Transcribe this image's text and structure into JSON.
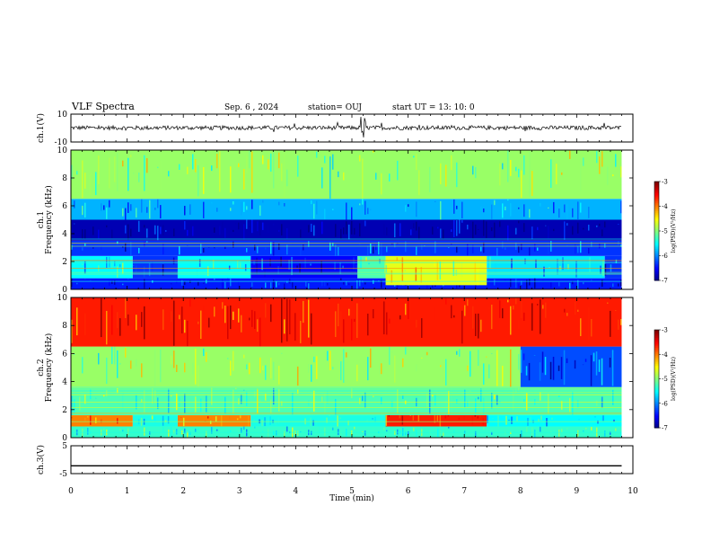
{
  "header": {
    "title": "VLF Spectra",
    "date": "Sep. 6 , 2024",
    "station": "station= OUJ",
    "start": "start UT =  13: 10: 0"
  },
  "chart_data": [
    {
      "type": "line",
      "panel": "ch1-waveform",
      "ylabel": "ch.1(V)",
      "ylim": [
        -10,
        10
      ],
      "ytick_labels": [
        "10",
        "-10"
      ],
      "xlim": [
        0,
        10
      ],
      "values_note": "",
      "baseline": 0.2,
      "grid": false
    },
    {
      "type": "heatmap",
      "panel": "ch1-spectrogram",
      "ylabel": "ch.1\nFrequency (kHz)",
      "ylabel_lines": [
        "ch.1",
        "Frequency (kHz)"
      ],
      "ylim": [
        0,
        10
      ],
      "ytick_labels": [
        "0",
        "2",
        "4",
        "6",
        "8",
        "10"
      ],
      "xlim": [
        0,
        10
      ],
      "colorbar": {
        "label": "log(PSD)(V²/Hz)",
        "range": [
          -7,
          -3
        ],
        "tick_labels": [
          "-3",
          "-4",
          "-5",
          "-6",
          "-7"
        ]
      },
      "bands": [
        {
          "f": [
            0,
            0.8
          ],
          "t": [
            0,
            9.8
          ],
          "level": -6.4
        },
        {
          "f": [
            0.8,
            2.4
          ],
          "t": [
            0,
            1.1
          ],
          "level": -5.5
        },
        {
          "f": [
            0.8,
            2.4
          ],
          "t": [
            1.1,
            1.9
          ],
          "level": -6.3
        },
        {
          "f": [
            0.8,
            2.4
          ],
          "t": [
            1.9,
            3.2
          ],
          "level": -5.5
        },
        {
          "f": [
            0.8,
            2.4
          ],
          "t": [
            3.2,
            5.1
          ],
          "level": -6.5
        },
        {
          "f": [
            0.8,
            2.4
          ],
          "t": [
            5.1,
            5.6
          ],
          "level": -5.2
        },
        {
          "f": [
            0.3,
            2.4
          ],
          "t": [
            5.6,
            7.4
          ],
          "level": -4.6
        },
        {
          "f": [
            0.8,
            2.4
          ],
          "t": [
            7.4,
            9.5
          ],
          "level": -5.6
        },
        {
          "f": [
            0.8,
            2.4
          ],
          "t": [
            9.5,
            9.8
          ],
          "level": -6.3
        },
        {
          "f": [
            2.4,
            3.5
          ],
          "t": [
            0,
            9.8
          ],
          "level": -6.3
        },
        {
          "f": [
            3.5,
            5.0
          ],
          "t": [
            0,
            9.8
          ],
          "level": -6.8
        },
        {
          "f": [
            5.0,
            6.5
          ],
          "t": [
            0,
            9.8
          ],
          "level": -5.8
        },
        {
          "f": [
            6.5,
            10
          ],
          "t": [
            0,
            9.8
          ],
          "level": -4.9
        }
      ]
    },
    {
      "type": "heatmap",
      "panel": "ch2-spectrogram",
      "ylabel_lines": [
        "ch.2",
        "Frequency (kHz)"
      ],
      "ylim": [
        0,
        10
      ],
      "ytick_labels": [
        "0",
        "2",
        "4",
        "6",
        "8",
        "10"
      ],
      "xlim": [
        0,
        10
      ],
      "colorbar": {
        "label": "log(PSD)(V²/Hz)",
        "range": [
          -7,
          -3
        ],
        "tick_labels": [
          "-3",
          "-4",
          "-5",
          "-6",
          "-7"
        ]
      },
      "bands": [
        {
          "f": [
            0,
            0.8
          ],
          "t": [
            0,
            9.8
          ],
          "level": -5.3
        },
        {
          "f": [
            0.8,
            1.6
          ],
          "t": [
            0,
            1.1
          ],
          "level": -4.0
        },
        {
          "f": [
            0.8,
            1.6
          ],
          "t": [
            1.1,
            1.9
          ],
          "level": -5.4
        },
        {
          "f": [
            0.8,
            1.6
          ],
          "t": [
            1.9,
            3.2
          ],
          "level": -4.0
        },
        {
          "f": [
            0.8,
            1.6
          ],
          "t": [
            3.2,
            5.6
          ],
          "level": -5.4
        },
        {
          "f": [
            0.8,
            2.0
          ],
          "t": [
            5.6,
            7.4
          ],
          "level": -3.6
        },
        {
          "f": [
            0.8,
            1.6
          ],
          "t": [
            7.4,
            9.8
          ],
          "level": -5.5
        },
        {
          "f": [
            1.6,
            3.6
          ],
          "t": [
            0,
            9.8
          ],
          "level": -5.2
        },
        {
          "f": [
            3.6,
            6.5
          ],
          "t": [
            0,
            8.0
          ],
          "level": -4.9
        },
        {
          "f": [
            3.6,
            6.5
          ],
          "t": [
            8.0,
            9.8
          ],
          "level": -6.2
        },
        {
          "f": [
            6.5,
            10
          ],
          "t": [
            0,
            9.8
          ],
          "level": -3.6
        }
      ]
    },
    {
      "type": "line",
      "panel": "ch3-waveform",
      "ylabel": "ch.3(V)",
      "ylim": [
        -5,
        5
      ],
      "ytick_labels": [
        "5",
        "-5"
      ],
      "xlim": [
        0,
        10
      ],
      "baseline": -2.2,
      "xlabel": "Time (min)",
      "xtick_labels": [
        "0",
        "1",
        "2",
        "3",
        "4",
        "5",
        "6",
        "7",
        "8",
        "9",
        "10"
      ]
    }
  ],
  "colors": {
    "axis": "#000000",
    "trace": "#000000"
  }
}
